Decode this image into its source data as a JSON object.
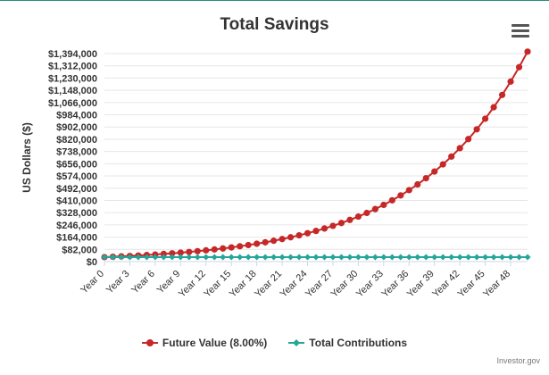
{
  "title": "Total Savings",
  "credit": "Investor.gov",
  "colors": {
    "future_value": "#c62828",
    "contributions": "#26a69a",
    "grid": "#e6e6e6",
    "axis": "#ccd6eb",
    "text": "#333333"
  },
  "menu_icon": "hamburger-menu-icon",
  "chart_data": {
    "type": "line",
    "title": "Total Savings",
    "ylabel": "US Dollars ($)",
    "xlabel": "",
    "ylim": [
      0,
      1394000
    ],
    "yticks": [
      0,
      82000,
      164000,
      246000,
      328000,
      410000,
      492000,
      574000,
      656000,
      738000,
      820000,
      902000,
      984000,
      1066000,
      1148000,
      1230000,
      1312000,
      1394000
    ],
    "ytick_labels": [
      "$0",
      "$82,000",
      "$164,000",
      "$246,000",
      "$328,000",
      "$410,000",
      "$492,000",
      "$574,000",
      "$656,000",
      "$738,000",
      "$820,000",
      "$902,000",
      "$984,000",
      "$1,066,000",
      "$1,148,000",
      "$1,230,000",
      "$1,312,000",
      "$1,394,000"
    ],
    "xtick_labels": [
      "Year 0",
      "Year 3",
      "Year 6",
      "Year 9",
      "Year 12",
      "Year 15",
      "Year 18",
      "Year 21",
      "Year 24",
      "Year 27",
      "Year 30",
      "Year 33",
      "Year 36",
      "Year 39",
      "Year 42",
      "Year 45",
      "Year 48"
    ],
    "x": [
      0,
      1,
      2,
      3,
      4,
      5,
      6,
      7,
      8,
      9,
      10,
      11,
      12,
      13,
      14,
      15,
      16,
      17,
      18,
      19,
      20,
      21,
      22,
      23,
      24,
      25,
      26,
      27,
      28,
      29,
      30,
      31,
      32,
      33,
      34,
      35,
      36,
      37,
      38,
      39,
      40,
      41,
      42,
      43,
      44,
      45,
      46,
      47,
      48,
      49,
      50
    ],
    "grid": true,
    "legend_position": "bottom",
    "series": [
      {
        "name": "Future Value (8.00%)",
        "values": [
          30000,
          32400,
          34992,
          37791,
          40815,
          44080,
          47606,
          51415,
          55528,
          59970,
          64768,
          69949,
          75545,
          81589,
          88116,
          95165,
          102778,
          111000,
          119880,
          129471,
          139829,
          151015,
          163096,
          176144,
          190236,
          205455,
          221891,
          239642,
          258814,
          279519,
          301880,
          326031,
          352113,
          380282,
          410705,
          443561,
          479046,
          517370,
          558759,
          603460,
          651737,
          703876,
          760186,
          821001,
          886681,
          957616,
          1034225,
          1116963,
          1206320,
          1302826,
          1407052
        ]
      },
      {
        "name": "Total Contributions",
        "values": [
          30000,
          30000,
          30000,
          30000,
          30000,
          30000,
          30000,
          30000,
          30000,
          30000,
          30000,
          30000,
          30000,
          30000,
          30000,
          30000,
          30000,
          30000,
          30000,
          30000,
          30000,
          30000,
          30000,
          30000,
          30000,
          30000,
          30000,
          30000,
          30000,
          30000,
          30000,
          30000,
          30000,
          30000,
          30000,
          30000,
          30000,
          30000,
          30000,
          30000,
          30000,
          30000,
          30000,
          30000,
          30000,
          30000,
          30000,
          30000,
          30000,
          30000,
          30000
        ]
      }
    ]
  }
}
